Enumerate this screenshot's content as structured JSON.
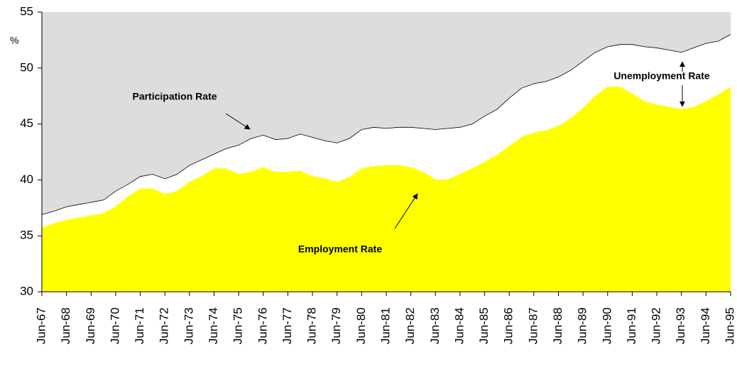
{
  "chart_data": {
    "type": "area",
    "y_label": "%",
    "categories": [
      "Jun-67",
      null,
      "Jun-68",
      null,
      "Jun-69",
      null,
      "Jun-70",
      null,
      "Jun-71",
      null,
      "Jun-72",
      null,
      "Jun-73",
      null,
      "Jun-74",
      null,
      "Jun-75",
      null,
      "Jun-76",
      null,
      "Jun-77",
      null,
      "Jun-78",
      null,
      "Jun-79",
      null,
      "Jun-80",
      null,
      "Jun-81",
      null,
      "Jun-82",
      null,
      "Jun-83",
      null,
      "Jun-84",
      null,
      "Jun-85",
      null,
      "Jun-86",
      null,
      "Jun-87",
      null,
      "Jun-88",
      null,
      "Jun-89",
      null,
      "Jun-90",
      null,
      "Jun-91",
      null,
      "Jun-92",
      null,
      "Jun-93",
      null,
      "Jun-94",
      null,
      "Jun-95"
    ],
    "series": [
      {
        "name": "Participation Rate",
        "color": "#ffffff",
        "values": [
          36.9,
          37.2,
          37.6,
          37.8,
          38.0,
          38.2,
          39.0,
          39.6,
          40.3,
          40.5,
          40.1,
          40.5,
          41.3,
          41.8,
          42.3,
          42.8,
          43.1,
          43.7,
          44.0,
          43.6,
          43.7,
          44.1,
          43.8,
          43.5,
          43.3,
          43.7,
          44.5,
          44.7,
          44.6,
          44.7,
          44.7,
          44.6,
          44.5,
          44.6,
          44.7,
          45.0,
          45.7,
          46.3,
          47.3,
          48.2,
          48.6,
          48.8,
          49.2,
          49.8,
          50.6,
          51.4,
          51.9,
          52.1,
          52.1,
          51.9,
          51.8,
          51.6,
          51.4,
          51.8,
          52.2,
          52.4,
          53.0
        ]
      },
      {
        "name": "Employment Rate",
        "color": "#ffff00",
        "values": [
          35.7,
          36.1,
          36.4,
          36.6,
          36.8,
          37.0,
          37.6,
          38.5,
          39.2,
          39.2,
          38.7,
          39.0,
          39.8,
          40.3,
          41.0,
          41.0,
          40.5,
          40.7,
          41.1,
          40.7,
          40.7,
          40.8,
          40.3,
          40.1,
          39.8,
          40.2,
          41.0,
          41.2,
          41.3,
          41.3,
          41.1,
          40.7,
          40.0,
          40.0,
          40.5,
          41.0,
          41.6,
          42.2,
          43.0,
          43.8,
          44.2,
          44.4,
          44.8,
          45.5,
          46.4,
          47.5,
          48.3,
          48.3,
          47.7,
          47.0,
          46.7,
          46.5,
          46.3,
          46.5,
          47.0,
          47.6,
          48.3
        ]
      }
    ],
    "annotations": [
      "Participation Rate",
      "Employment Rate",
      "Unemployment Rate"
    ],
    "plot_background": "#dddddd",
    "ylim": [
      30,
      55
    ],
    "yticks": [
      30,
      35,
      40,
      45,
      50,
      55
    ]
  }
}
